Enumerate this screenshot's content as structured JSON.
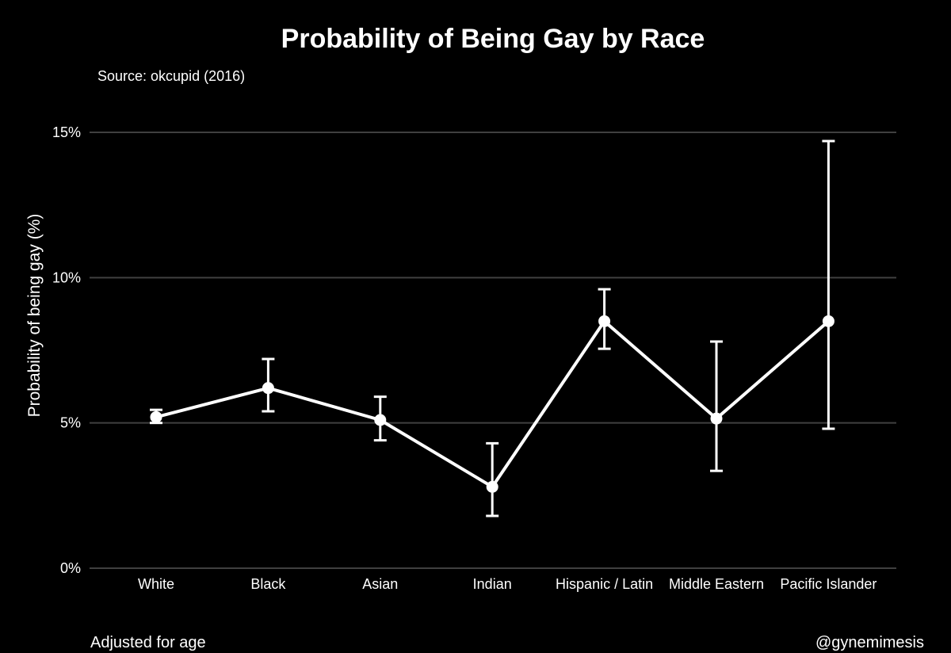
{
  "chart_data": {
    "type": "line",
    "title": "Probability of Being Gay by Race",
    "subtitle": "Source: okcupid (2016)",
    "xlabel": "",
    "ylabel": "Probability of being gay (%)",
    "caption_left": "Adjusted for age",
    "caption_right": "@gynemimesis",
    "categories": [
      "White",
      "Black",
      "Asian",
      "Indian",
      "Hispanic / Latin",
      "Middle Eastern",
      "Pacific Islander"
    ],
    "series": [
      {
        "values": [
          5.2,
          6.2,
          5.1,
          2.8,
          8.5,
          5.15,
          8.5
        ],
        "error_low": [
          5.0,
          5.4,
          4.4,
          1.8,
          7.55,
          3.35,
          4.8
        ],
        "error_high": [
          5.45,
          7.2,
          5.9,
          4.3,
          9.6,
          7.8,
          14.7
        ]
      }
    ],
    "ylim": [
      0,
      15
    ],
    "yticks": [
      0,
      5,
      10,
      15
    ],
    "ytick_labels": [
      "0%",
      "5%",
      "10%",
      "15%"
    ],
    "grid": true,
    "legend": "none",
    "colors": {
      "background": "#000000",
      "line": "#ffffff",
      "grid": "#404040",
      "text": "#ffffff"
    }
  }
}
